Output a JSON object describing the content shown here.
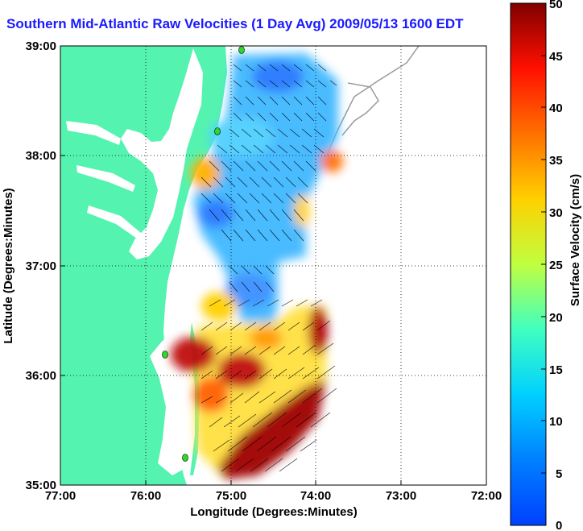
{
  "title": "Southern Mid-Atlantic Raw Velocities (1 Day Avg) 2009/05/13 1600 EDT",
  "x_axis": {
    "label": "Longitude (Degrees:Minutes)",
    "ticks": [
      "77:00",
      "76:00",
      "75:00",
      "74:00",
      "73:00",
      "72:00"
    ]
  },
  "y_axis": {
    "label": "Latitude (Degrees:Minutes)",
    "ticks": [
      "39:00",
      "38:00",
      "37:00",
      "36:00",
      "35:00"
    ]
  },
  "colorbar": {
    "label": "Surface Velocity (cm/s)",
    "ticks": [
      "50",
      "45",
      "40",
      "35",
      "30",
      "25",
      "20",
      "15",
      "10",
      "5",
      "0"
    ],
    "min": 0,
    "max": 50
  },
  "colors": {
    "land": "#55f3b0",
    "title": "#1a1aff",
    "station": "#2bd92b"
  },
  "grid": "dotted"
}
